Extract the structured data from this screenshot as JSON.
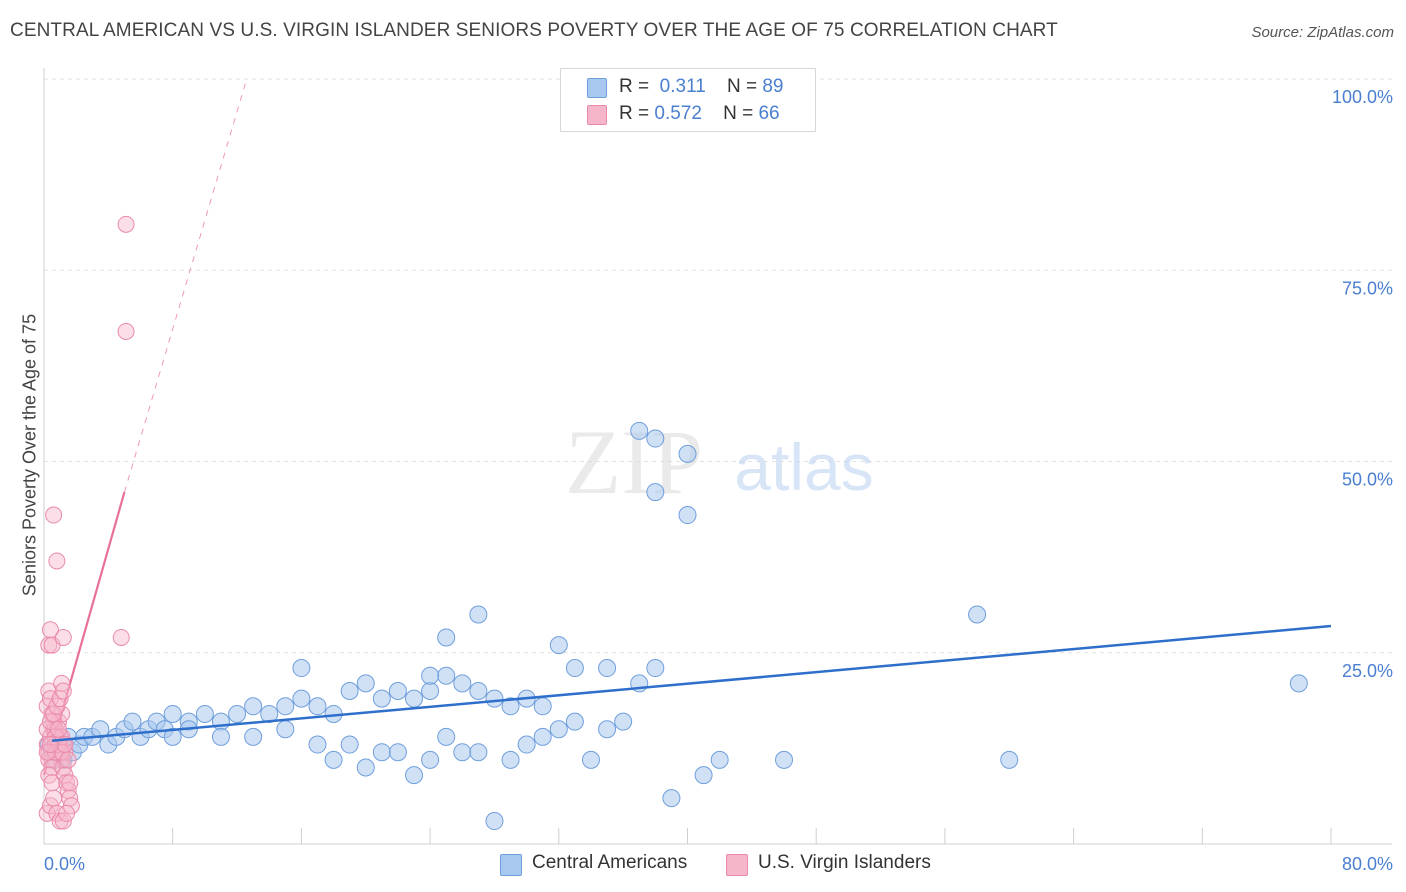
{
  "title": "CENTRAL AMERICAN VS U.S. VIRGIN ISLANDER SENIORS POVERTY OVER THE AGE OF 75 CORRELATION CHART",
  "source": "Source: ZipAtlas.com",
  "watermark": {
    "zip": "ZIP",
    "atlas": "atlas"
  },
  "legend": {
    "rows": [
      {
        "r_label": "R =",
        "r_value": "0.311",
        "n_label": "N =",
        "n_value": "89"
      },
      {
        "r_label": "R =",
        "r_value": "0.572",
        "n_label": "N =",
        "n_value": "66"
      }
    ]
  },
  "bottom_legend": [
    "Central Americans",
    "U.S. Virgin Islanders"
  ],
  "colors": {
    "blue_fill": "#a9c8ef",
    "blue_stroke": "#6f9fdc",
    "blue_line": "#2f6fcc",
    "pink_fill": "#f6b6ca",
    "pink_stroke": "#e98aab",
    "pink_line": "#e8709a",
    "axis_text": "#4a7fd0",
    "grid": "#e2e2e2"
  },
  "chart_data": {
    "type": "scatter",
    "title": "CENTRAL AMERICAN VS U.S. VIRGIN ISLANDER SENIORS POVERTY OVER THE AGE OF 75 CORRELATION CHART",
    "xlabel": "",
    "ylabel": "Seniors Poverty Over the Age of 75",
    "xlim": [
      0,
      80
    ],
    "ylim": [
      0,
      100
    ],
    "x_tick_labels": [
      "0.0%",
      "80.0%"
    ],
    "y_ticks": [
      25,
      50,
      75,
      100
    ],
    "y_tick_labels": [
      "25.0%",
      "50.0%",
      "75.0%",
      "100.0%"
    ],
    "grid": true,
    "series": [
      {
        "name": "Central Americans",
        "r": 0.311,
        "n": 89,
        "trend": {
          "x": [
            0.5,
            80
          ],
          "y": [
            13.5,
            28.5
          ]
        },
        "points": [
          [
            0.3,
            13
          ],
          [
            0.5,
            12
          ],
          [
            0.7,
            11
          ],
          [
            0.9,
            13
          ],
          [
            1.2,
            11
          ],
          [
            1.5,
            14
          ],
          [
            1.8,
            12
          ],
          [
            2.2,
            13
          ],
          [
            2.5,
            14
          ],
          [
            3,
            14
          ],
          [
            3.5,
            15
          ],
          [
            4,
            13
          ],
          [
            4.5,
            14
          ],
          [
            5,
            15
          ],
          [
            5.5,
            16
          ],
          [
            6,
            14
          ],
          [
            6.5,
            15
          ],
          [
            7,
            16
          ],
          [
            7.5,
            15
          ],
          [
            8,
            17
          ],
          [
            9,
            16
          ],
          [
            10,
            17
          ],
          [
            11,
            16
          ],
          [
            12,
            17
          ],
          [
            13,
            18
          ],
          [
            14,
            17
          ],
          [
            15,
            18
          ],
          [
            16,
            19
          ],
          [
            17,
            18
          ],
          [
            18,
            17
          ],
          [
            19,
            20
          ],
          [
            20,
            21
          ],
          [
            21,
            19
          ],
          [
            22,
            20
          ],
          [
            23,
            19
          ],
          [
            24,
            20
          ],
          [
            25,
            22
          ],
          [
            26,
            21
          ],
          [
            27,
            20
          ],
          [
            28,
            19
          ],
          [
            29,
            18
          ],
          [
            30,
            19
          ],
          [
            31,
            18
          ],
          [
            8,
            14
          ],
          [
            9,
            15
          ],
          [
            11,
            14
          ],
          [
            13,
            14
          ],
          [
            15,
            15
          ],
          [
            17,
            13
          ],
          [
            18,
            11
          ],
          [
            19,
            13
          ],
          [
            20,
            10
          ],
          [
            21,
            12
          ],
          [
            22,
            12
          ],
          [
            23,
            9
          ],
          [
            24,
            11
          ],
          [
            25,
            14
          ],
          [
            26,
            12
          ],
          [
            27,
            12
          ],
          [
            28,
            3
          ],
          [
            29,
            11
          ],
          [
            30,
            13
          ],
          [
            31,
            14
          ],
          [
            32,
            15
          ],
          [
            33,
            16
          ],
          [
            34,
            11
          ],
          [
            35,
            15
          ],
          [
            36,
            16
          ],
          [
            37,
            21
          ],
          [
            38,
            23
          ],
          [
            16,
            23
          ],
          [
            24,
            22
          ],
          [
            25,
            27
          ],
          [
            27,
            30
          ],
          [
            32,
            26
          ],
          [
            33,
            23
          ],
          [
            35,
            23
          ],
          [
            37,
            54
          ],
          [
            38,
            53
          ],
          [
            38,
            46
          ],
          [
            40,
            51
          ],
          [
            40,
            43
          ],
          [
            41,
            9
          ],
          [
            39,
            6
          ],
          [
            42,
            11
          ],
          [
            46,
            11
          ],
          [
            60,
            11
          ],
          [
            58,
            30
          ],
          [
            78,
            21
          ]
        ]
      },
      {
        "name": "U.S. Virgin Islanders",
        "r": 0.572,
        "n": 66,
        "trend": {
          "x": [
            0,
            5
          ],
          "y": [
            9,
            46
          ],
          "dashed_to": [
            12.6,
            100
          ]
        },
        "points": [
          [
            0.2,
            13
          ],
          [
            0.3,
            12
          ],
          [
            0.4,
            14
          ],
          [
            0.5,
            11
          ],
          [
            0.6,
            15
          ],
          [
            0.7,
            13
          ],
          [
            0.8,
            12
          ],
          [
            0.9,
            16
          ],
          [
            1,
            14
          ],
          [
            1.1,
            17
          ],
          [
            1.2,
            13
          ],
          [
            1.3,
            12
          ],
          [
            0.2,
            18
          ],
          [
            0.3,
            20
          ],
          [
            0.4,
            19
          ],
          [
            0.5,
            17
          ],
          [
            0.6,
            16
          ],
          [
            0.7,
            15
          ],
          [
            0.8,
            14
          ],
          [
            0.9,
            13
          ],
          [
            1,
            12
          ],
          [
            1.1,
            11
          ],
          [
            1.2,
            10
          ],
          [
            1.3,
            9
          ],
          [
            1.4,
            8
          ],
          [
            1.5,
            7
          ],
          [
            1.6,
            6
          ],
          [
            1.7,
            5
          ],
          [
            0.3,
            26
          ],
          [
            0.4,
            28
          ],
          [
            0.5,
            26
          ],
          [
            1.2,
            27
          ],
          [
            1.1,
            21
          ],
          [
            0.6,
            43
          ],
          [
            0.8,
            37
          ],
          [
            0.2,
            4
          ],
          [
            0.4,
            5
          ],
          [
            0.6,
            6
          ],
          [
            0.8,
            4
          ],
          [
            1,
            3
          ],
          [
            1.2,
            3
          ],
          [
            1.4,
            4
          ],
          [
            1.6,
            8
          ],
          [
            0.3,
            11
          ],
          [
            0.5,
            10
          ],
          [
            0.7,
            12
          ],
          [
            0.9,
            13
          ],
          [
            1.1,
            14
          ],
          [
            0.2,
            15
          ],
          [
            0.4,
            16
          ],
          [
            0.6,
            17
          ],
          [
            0.8,
            18
          ],
          [
            1,
            19
          ],
          [
            1.2,
            20
          ],
          [
            5.1,
            81
          ],
          [
            5.1,
            67
          ],
          [
            4.8,
            27
          ],
          [
            0.3,
            9
          ],
          [
            0.5,
            8
          ],
          [
            0.7,
            14
          ],
          [
            0.9,
            15
          ],
          [
            1.1,
            12
          ],
          [
            1.3,
            13
          ],
          [
            1.5,
            11
          ],
          [
            0.2,
            12
          ],
          [
            0.4,
            13
          ]
        ]
      }
    ]
  }
}
